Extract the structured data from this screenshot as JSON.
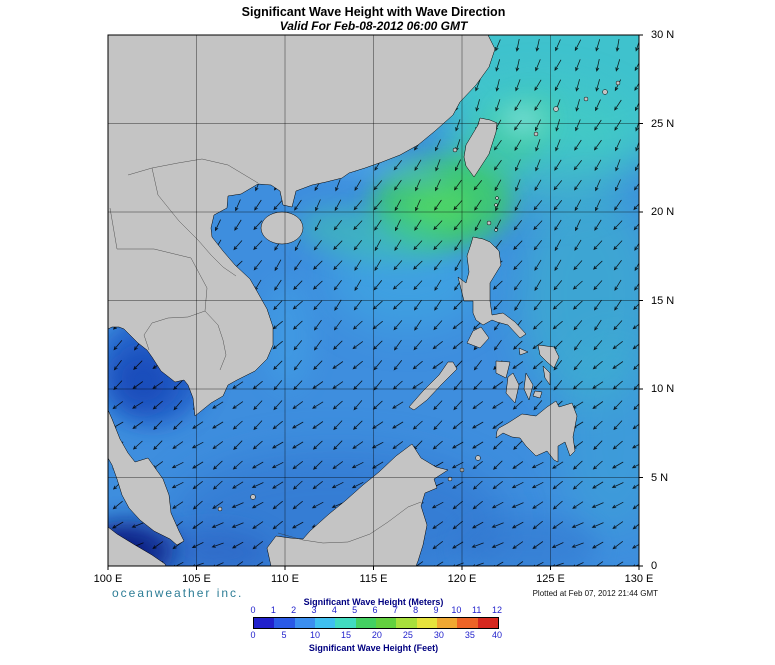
{
  "title": {
    "line1": "Significant Wave Height with Wave Direction",
    "line2": "Valid For Feb-08-2012 06:00 GMT"
  },
  "map": {
    "x_ticks": [
      "100 E",
      "105 E",
      "110 E",
      "115 E",
      "120 E",
      "125 E",
      "130 E"
    ],
    "y_ticks": [
      "30 N",
      "25 N",
      "20 N",
      "15 N",
      "10 N",
      "5 N",
      "0"
    ]
  },
  "footer": {
    "brand": "oceanweather inc.",
    "plotted": "Plotted at Feb 07, 2012 21:44 GMT"
  },
  "colorbar": {
    "meters_label": "Significant Wave Height (Meters)",
    "feet_label": "Significant Wave Height (Feet)",
    "meters_ticks": [
      "0",
      "1",
      "2",
      "3",
      "4",
      "5",
      "6",
      "7",
      "8",
      "9",
      "10",
      "11",
      "12"
    ],
    "feet_ticks": [
      "0",
      "5",
      "10",
      "15",
      "20",
      "25",
      "30",
      "35",
      "40"
    ],
    "colors": [
      "#2121cc",
      "#2a5ae6",
      "#3b8ff0",
      "#3fc0f0",
      "#41dcc0",
      "#44d162",
      "#63d13f",
      "#a8e03c",
      "#e6e33c",
      "#f0a832",
      "#ee6426",
      "#d6281e"
    ],
    "tick_color": "#2222cc",
    "label_color": "#000080"
  },
  "brand_color": "#2d7d96",
  "sea_base_color": "#3e8ede",
  "land_color": "#c4c4c4"
}
